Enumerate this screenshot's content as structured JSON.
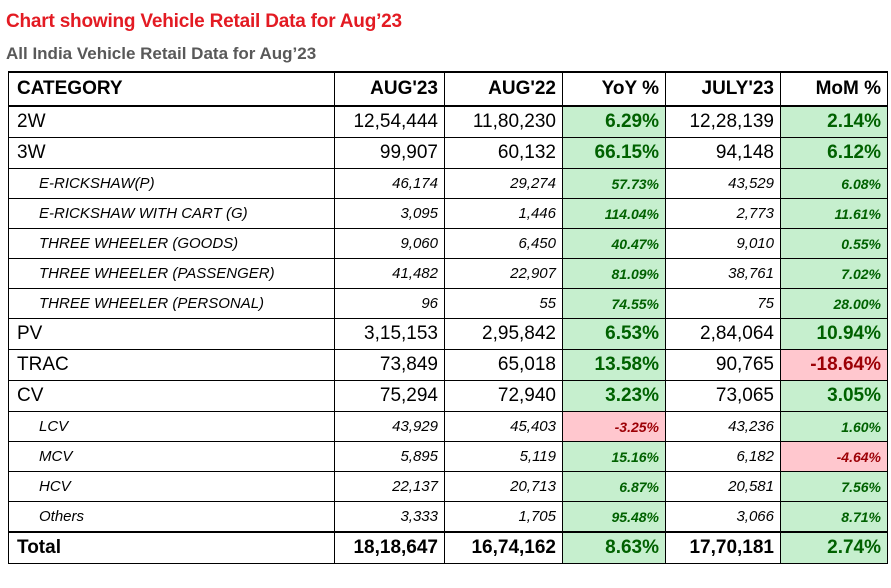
{
  "title": "Chart showing Vehicle Retail Data for Aug’23",
  "subtitle": "All India Vehicle Retail Data for Aug’23",
  "headers": [
    "CATEGORY",
    "AUG'23",
    "AUG'22",
    "YoY %",
    "JULY'23",
    "MoM %"
  ],
  "rows": [
    {
      "kind": "main",
      "category": "2W",
      "aug23": "12,54,444",
      "aug22": "11,80,230",
      "yoy": "6.29%",
      "yoy_sign": "pos",
      "jul23": "12,28,139",
      "mom": "2.14%",
      "mom_sign": "pos"
    },
    {
      "kind": "main",
      "category": "3W",
      "aug23": "99,907",
      "aug22": "60,132",
      "yoy": "66.15%",
      "yoy_sign": "pos",
      "jul23": "94,148",
      "mom": "6.12%",
      "mom_sign": "pos"
    },
    {
      "kind": "sub",
      "category": "E-RICKSHAW(P)",
      "aug23": "46,174",
      "aug22": "29,274",
      "yoy": "57.73%",
      "yoy_sign": "pos",
      "jul23": "43,529",
      "mom": "6.08%",
      "mom_sign": "pos"
    },
    {
      "kind": "sub",
      "category": "E-RICKSHAW WITH CART (G)",
      "aug23": "3,095",
      "aug22": "1,446",
      "yoy": "114.04%",
      "yoy_sign": "pos",
      "jul23": "2,773",
      "mom": "11.61%",
      "mom_sign": "pos"
    },
    {
      "kind": "sub",
      "category": "THREE WHEELER (GOODS)",
      "aug23": "9,060",
      "aug22": "6,450",
      "yoy": "40.47%",
      "yoy_sign": "pos",
      "jul23": "9,010",
      "mom": "0.55%",
      "mom_sign": "pos"
    },
    {
      "kind": "sub",
      "category": "THREE WHEELER (PASSENGER)",
      "aug23": "41,482",
      "aug22": "22,907",
      "yoy": "81.09%",
      "yoy_sign": "pos",
      "jul23": "38,761",
      "mom": "7.02%",
      "mom_sign": "pos"
    },
    {
      "kind": "sub",
      "category": "THREE WHEELER (PERSONAL)",
      "aug23": "96",
      "aug22": "55",
      "yoy": "74.55%",
      "yoy_sign": "pos",
      "jul23": "75",
      "mom": "28.00%",
      "mom_sign": "pos"
    },
    {
      "kind": "main",
      "category": "PV",
      "aug23": "3,15,153",
      "aug22": "2,95,842",
      "yoy": "6.53%",
      "yoy_sign": "pos",
      "jul23": "2,84,064",
      "mom": "10.94%",
      "mom_sign": "pos"
    },
    {
      "kind": "main",
      "category": "TRAC",
      "aug23": "73,849",
      "aug22": "65,018",
      "yoy": "13.58%",
      "yoy_sign": "pos",
      "jul23": "90,765",
      "mom": "-18.64%",
      "mom_sign": "neg"
    },
    {
      "kind": "main",
      "category": "CV",
      "aug23": "75,294",
      "aug22": "72,940",
      "yoy": "3.23%",
      "yoy_sign": "pos",
      "jul23": "73,065",
      "mom": "3.05%",
      "mom_sign": "pos"
    },
    {
      "kind": "sub",
      "category": "LCV",
      "aug23": "43,929",
      "aug22": "45,403",
      "yoy": "-3.25%",
      "yoy_sign": "neg",
      "jul23": "43,236",
      "mom": "1.60%",
      "mom_sign": "pos"
    },
    {
      "kind": "sub",
      "category": "MCV",
      "aug23": "5,895",
      "aug22": "5,119",
      "yoy": "15.16%",
      "yoy_sign": "pos",
      "jul23": "6,182",
      "mom": "-4.64%",
      "mom_sign": "neg"
    },
    {
      "kind": "sub",
      "category": "HCV",
      "aug23": "22,137",
      "aug22": "20,713",
      "yoy": "6.87%",
      "yoy_sign": "pos",
      "jul23": "20,581",
      "mom": "7.56%",
      "mom_sign": "pos"
    },
    {
      "kind": "sub",
      "category": "Others",
      "aug23": "3,333",
      "aug22": "1,705",
      "yoy": "95.48%",
      "yoy_sign": "pos",
      "jul23": "3,066",
      "mom": "8.71%",
      "mom_sign": "pos"
    }
  ],
  "total": {
    "category": "Total",
    "aug23": "18,18,647",
    "aug22": "16,74,162",
    "yoy": "8.63%",
    "jul23": "17,70,181",
    "mom": "2.74%"
  },
  "colors": {
    "title": "#e31b23",
    "subtitle": "#595959",
    "pos_bg": "#c6efce",
    "pos_fg": "#006100",
    "neg_bg": "#ffc7ce",
    "neg_fg": "#9c0006"
  }
}
